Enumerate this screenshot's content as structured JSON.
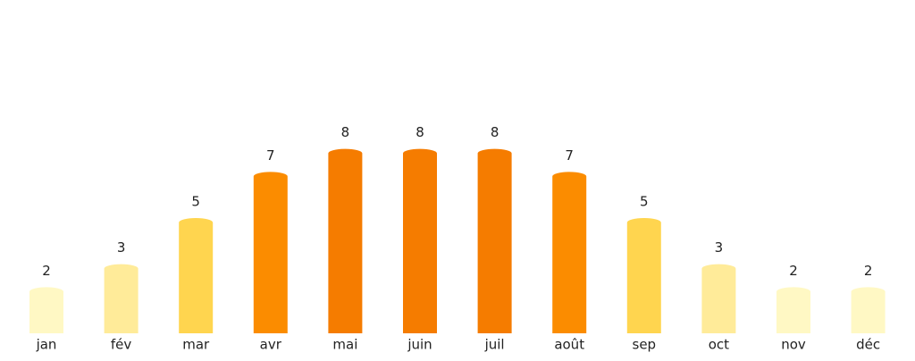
{
  "chart_data": {
    "type": "bar",
    "categories": [
      "jan",
      "fév",
      "mar",
      "avr",
      "mai",
      "juin",
      "juil",
      "août",
      "sep",
      "oct",
      "nov",
      "déc"
    ],
    "values": [
      2,
      3,
      5,
      7,
      8,
      8,
      8,
      7,
      5,
      3,
      2,
      2
    ],
    "colors": [
      "#fff8c4",
      "#ffeb99",
      "#ffd54f",
      "#fb8c00",
      "#f57c00",
      "#f57c00",
      "#f57c00",
      "#fb8c00",
      "#ffd54f",
      "#ffeb99",
      "#fff8c4",
      "#fff8c4"
    ]
  }
}
